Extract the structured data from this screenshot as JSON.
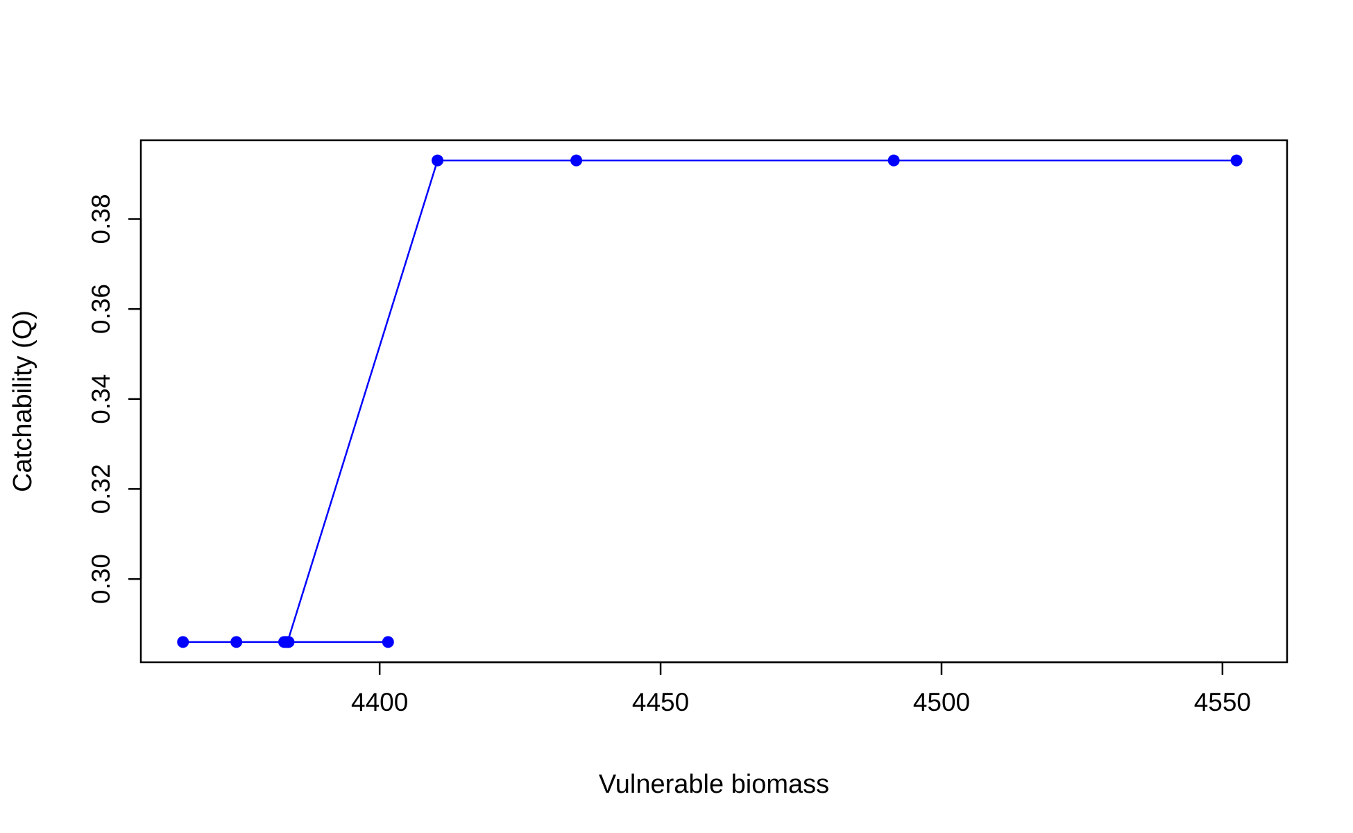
{
  "chart_data": {
    "type": "line",
    "title": "",
    "xlabel": "Vulnerable biomass",
    "ylabel": "Catchability (Q)",
    "xlim": [
      4357.5,
      4561.5
    ],
    "ylim": [
      0.2815,
      0.3975
    ],
    "xticks": [
      4400,
      4450,
      4500,
      4550
    ],
    "yticks": [
      0.3,
      0.32,
      0.34,
      0.36,
      0.38
    ],
    "xtick_labels": [
      "4400",
      "4450",
      "4500",
      "4550"
    ],
    "ytick_labels": [
      "0.30",
      "0.32",
      "0.34",
      "0.36",
      "0.38"
    ],
    "grid": false,
    "legend": "none",
    "series": [
      {
        "color": "#0000ff",
        "marker": "filled-circle",
        "points": [
          {
            "x": 4365.0,
            "y": 0.286
          },
          {
            "x": 4374.5,
            "y": 0.286
          },
          {
            "x": 4383.0,
            "y": 0.286
          },
          {
            "x": 4383.8,
            "y": 0.286
          },
          {
            "x": 4383.3,
            "y": 0.286
          },
          {
            "x": 4401.5,
            "y": 0.286
          },
          {
            "x": 4383.6,
            "y": 0.286
          },
          {
            "x": 4410.3,
            "y": 0.393
          },
          {
            "x": 4435.0,
            "y": 0.393
          },
          {
            "x": 4491.5,
            "y": 0.393
          },
          {
            "x": 4552.5,
            "y": 0.393
          }
        ]
      }
    ]
  }
}
